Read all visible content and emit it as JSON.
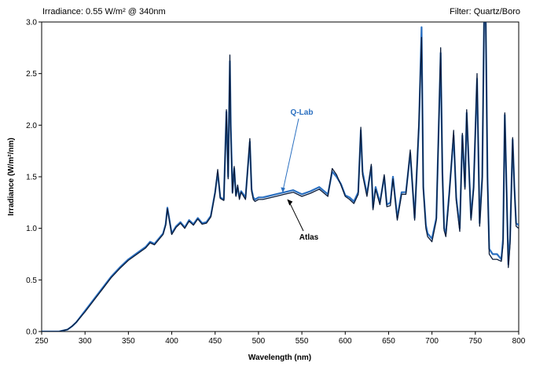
{
  "header": {
    "irradiance_note": "Irradiance: 0.55 W/m² @ 340nm",
    "filter_note": "Filter: Quartz/Boro"
  },
  "chart_data": {
    "type": "line",
    "title": "",
    "xlabel": "Wavelength (nm)",
    "ylabel": "Irradiance (W/m²/nm)",
    "xlim": [
      250,
      800
    ],
    "ylim": [
      0,
      3.0
    ],
    "xticks": [
      250,
      300,
      350,
      400,
      450,
      500,
      550,
      600,
      650,
      700,
      750,
      800
    ],
    "yticks": [
      0.0,
      0.5,
      1.0,
      1.5,
      2.0,
      2.5,
      3.0
    ],
    "ytick_labels": [
      "0.0",
      "0.5",
      "1.0",
      "1.5",
      "2.0",
      "2.5",
      "3.0"
    ],
    "grid": false,
    "annotations": [
      {
        "text": "Q-Lab",
        "color": "#2a6fc0",
        "points_to": [
          528,
          1.33
        ]
      },
      {
        "text": "Atlas",
        "color": "#000000",
        "points_to": [
          533,
          1.29
        ]
      }
    ],
    "series": [
      {
        "name": "Q-Lab",
        "color": "#2a6fc0",
        "x": [
          250,
          270,
          280,
          285,
          290,
          300,
          310,
          320,
          330,
          340,
          350,
          360,
          370,
          375,
          380,
          385,
          390,
          393,
          395,
          398,
          400,
          405,
          410,
          415,
          420,
          425,
          430,
          435,
          440,
          445,
          450,
          453,
          456,
          460,
          463,
          465,
          467,
          468,
          470,
          472,
          474,
          476,
          478,
          480,
          485,
          490,
          492,
          494,
          496,
          500,
          505,
          510,
          520,
          530,
          540,
          550,
          560,
          570,
          580,
          585,
          590,
          595,
          600,
          605,
          610,
          615,
          618,
          620,
          625,
          630,
          632,
          635,
          640,
          645,
          648,
          652,
          655,
          660,
          665,
          670,
          675,
          680,
          685,
          688,
          690,
          693,
          695,
          700,
          705,
          710,
          712,
          714,
          716,
          720,
          725,
          728,
          732,
          735,
          738,
          740,
          745,
          748,
          752,
          755,
          758,
          760,
          762,
          764,
          766,
          770,
          775,
          780,
          782,
          784,
          786,
          788,
          790,
          793,
          795,
          797,
          800
        ],
        "y": [
          0.0,
          0.0,
          0.02,
          0.05,
          0.09,
          0.2,
          0.31,
          0.42,
          0.53,
          0.62,
          0.7,
          0.76,
          0.82,
          0.87,
          0.85,
          0.9,
          0.95,
          1.04,
          1.2,
          1.05,
          0.95,
          1.02,
          1.06,
          1.01,
          1.08,
          1.04,
          1.1,
          1.05,
          1.06,
          1.12,
          1.35,
          1.54,
          1.3,
          1.28,
          2.13,
          1.5,
          2.62,
          2.0,
          1.35,
          1.58,
          1.32,
          1.4,
          1.3,
          1.36,
          1.3,
          1.84,
          1.38,
          1.3,
          1.28,
          1.3,
          1.3,
          1.31,
          1.33,
          1.35,
          1.37,
          1.33,
          1.36,
          1.4,
          1.33,
          1.55,
          1.5,
          1.43,
          1.32,
          1.3,
          1.26,
          1.35,
          1.95,
          1.55,
          1.33,
          1.6,
          1.2,
          1.4,
          1.25,
          1.5,
          1.23,
          1.25,
          1.5,
          1.1,
          1.35,
          1.35,
          1.73,
          1.1,
          2.0,
          2.95,
          1.4,
          1.03,
          0.95,
          0.9,
          1.1,
          2.7,
          1.55,
          1.0,
          0.95,
          1.35,
          1.9,
          1.3,
          1.0,
          1.9,
          1.4,
          2.12,
          1.1,
          1.4,
          2.45,
          1.05,
          1.5,
          3.0,
          3.0,
          1.5,
          0.8,
          0.75,
          0.75,
          0.7,
          0.9,
          2.1,
          1.4,
          0.65,
          0.9,
          1.86,
          1.4,
          1.05,
          1.03
        ]
      },
      {
        "name": "Atlas",
        "color": "#0b1c3a",
        "x": [
          250,
          270,
          280,
          285,
          290,
          300,
          310,
          320,
          330,
          340,
          350,
          360,
          370,
          375,
          380,
          385,
          390,
          393,
          395,
          398,
          400,
          405,
          410,
          415,
          420,
          425,
          430,
          435,
          440,
          445,
          450,
          453,
          456,
          460,
          463,
          465,
          467,
          468,
          470,
          472,
          474,
          476,
          478,
          480,
          485,
          490,
          492,
          494,
          496,
          500,
          505,
          510,
          520,
          530,
          540,
          550,
          560,
          570,
          580,
          585,
          590,
          595,
          600,
          605,
          610,
          615,
          618,
          620,
          625,
          630,
          632,
          635,
          640,
          645,
          648,
          652,
          655,
          660,
          665,
          670,
          675,
          680,
          685,
          688,
          690,
          693,
          695,
          700,
          705,
          710,
          712,
          714,
          716,
          720,
          725,
          728,
          732,
          735,
          738,
          740,
          745,
          748,
          752,
          755,
          758,
          760,
          762,
          764,
          766,
          770,
          775,
          780,
          782,
          784,
          786,
          788,
          790,
          793,
          795,
          797,
          800
        ],
        "y": [
          0.0,
          0.0,
          0.02,
          0.05,
          0.09,
          0.19,
          0.3,
          0.41,
          0.52,
          0.61,
          0.69,
          0.75,
          0.81,
          0.86,
          0.84,
          0.89,
          0.94,
          1.03,
          1.19,
          1.04,
          0.94,
          1.01,
          1.05,
          1.0,
          1.07,
          1.03,
          1.09,
          1.04,
          1.05,
          1.11,
          1.34,
          1.57,
          1.29,
          1.27,
          2.15,
          1.48,
          2.68,
          1.95,
          1.34,
          1.6,
          1.31,
          1.42,
          1.28,
          1.35,
          1.28,
          1.87,
          1.36,
          1.28,
          1.26,
          1.28,
          1.28,
          1.29,
          1.31,
          1.33,
          1.35,
          1.31,
          1.34,
          1.38,
          1.31,
          1.58,
          1.52,
          1.42,
          1.31,
          1.28,
          1.24,
          1.33,
          1.98,
          1.52,
          1.31,
          1.62,
          1.18,
          1.38,
          1.23,
          1.52,
          1.21,
          1.22,
          1.48,
          1.08,
          1.33,
          1.33,
          1.76,
          1.08,
          2.05,
          2.85,
          1.38,
          1.0,
          0.92,
          0.87,
          1.08,
          2.75,
          1.52,
          0.98,
          0.92,
          1.33,
          1.95,
          1.27,
          0.97,
          1.92,
          1.38,
          2.15,
          1.08,
          1.38,
          2.5,
          1.02,
          1.47,
          3.0,
          3.0,
          1.45,
          0.75,
          0.7,
          0.7,
          0.68,
          0.85,
          2.12,
          1.38,
          0.62,
          0.85,
          1.88,
          1.38,
          1.02,
          1.0
        ]
      }
    ]
  }
}
